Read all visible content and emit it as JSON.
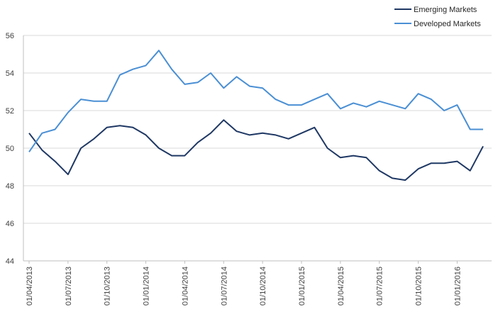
{
  "chart_data": {
    "type": "line",
    "title": "",
    "xlabel": "",
    "ylabel": "",
    "ylim": [
      44,
      56
    ],
    "yticks": [
      44,
      46,
      48,
      50,
      52,
      54,
      56
    ],
    "grid": "horizontal",
    "legend_position": "top-right",
    "x_tick_labels": [
      "01/04/2013",
      "01/07/2013",
      "01/10/2013",
      "01/01/2014",
      "01/04/2014",
      "01/07/2014",
      "01/10/2014",
      "01/01/2015",
      "01/04/2015",
      "01/07/2015",
      "01/10/2015",
      "01/01/2016"
    ],
    "x": [
      "2013-04",
      "2013-05",
      "2013-06",
      "2013-07",
      "2013-08",
      "2013-09",
      "2013-10",
      "2013-11",
      "2013-12",
      "2014-01",
      "2014-02",
      "2014-03",
      "2014-04",
      "2014-05",
      "2014-06",
      "2014-07",
      "2014-08",
      "2014-09",
      "2014-10",
      "2014-11",
      "2014-12",
      "2015-01",
      "2015-02",
      "2015-03",
      "2015-04",
      "2015-05",
      "2015-06",
      "2015-07",
      "2015-08",
      "2015-09",
      "2015-10",
      "2015-11",
      "2015-12",
      "2016-01",
      "2016-02",
      "2016-03"
    ],
    "series": [
      {
        "name": "Emerging Markets",
        "color": "#1f3864",
        "values": [
          50.8,
          49.9,
          49.3,
          48.6,
          50.0,
          50.5,
          51.1,
          51.2,
          51.1,
          50.7,
          50.0,
          49.6,
          49.6,
          50.3,
          50.8,
          51.5,
          50.9,
          50.7,
          50.8,
          50.7,
          50.5,
          50.8,
          51.1,
          50.0,
          49.5,
          49.6,
          49.5,
          48.8,
          48.4,
          48.3,
          48.9,
          49.2,
          49.2,
          49.3,
          48.8,
          50.1
        ]
      },
      {
        "name": "Developed Markets",
        "color": "#4a8fd4",
        "values": [
          49.8,
          50.8,
          51.0,
          51.9,
          52.6,
          52.5,
          52.5,
          53.9,
          54.2,
          54.4,
          55.2,
          54.2,
          53.4,
          53.5,
          54.0,
          53.2,
          53.8,
          53.3,
          53.2,
          52.6,
          52.3,
          52.3,
          52.6,
          52.9,
          52.1,
          52.4,
          52.2,
          52.5,
          52.3,
          52.1,
          52.9,
          52.6,
          52.0,
          52.3,
          51.0,
          51.0
        ]
      }
    ]
  }
}
